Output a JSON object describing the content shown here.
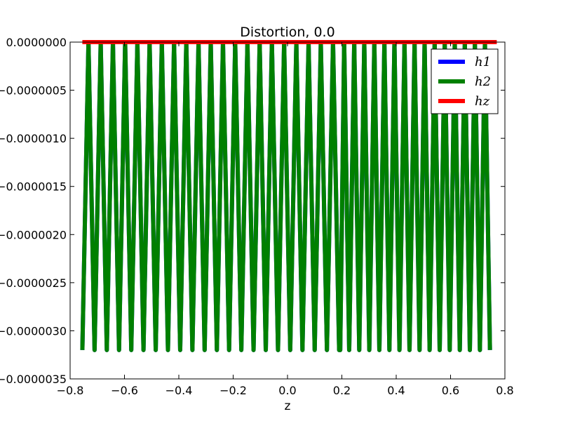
{
  "chart_data": {
    "type": "line",
    "title": "Distortion, 0.0",
    "xlabel": "z",
    "ylabel": "",
    "xlim": [
      -0.8,
      0.8
    ],
    "ylim": [
      -3.5e-06,
      0.0
    ],
    "x_ticks": [
      -0.8,
      -0.6,
      -0.4,
      -0.2,
      0.0,
      0.2,
      0.4,
      0.6,
      0.8
    ],
    "x_tick_labels": [
      "−0.8",
      "−0.6",
      "−0.4",
      "−0.2",
      "0.0",
      "0.2",
      "0.4",
      "0.6",
      "0.8"
    ],
    "y_ticks": [
      0.0,
      -5e-07,
      -1e-06,
      -1.5e-06,
      -2e-06,
      -2.5e-06,
      -3e-06,
      -3.5e-06
    ],
    "y_tick_labels": [
      "0.0000000",
      "−0.0000005",
      "−0.0000010",
      "−0.0000015",
      "−0.0000020",
      "−0.0000025",
      "−0.0000030",
      "−0.0000035"
    ],
    "grid": false,
    "legend_position": "top-right",
    "series": [
      {
        "name": "h1",
        "color": "#0000ff",
        "description": "oscillation between 0 and -3.2e-6 over z in [-0.755, 0.745], phase break near z=0.19 (hidden beneath h2)",
        "oscillation": {
          "x_start": -0.755,
          "x_end": 0.745,
          "y_max": 0.0,
          "y_min": -3.2e-06,
          "phase_break_x": 0.19,
          "half_periods_left": 42,
          "half_periods_right": 30
        }
      },
      {
        "name": "h2",
        "color": "#008000",
        "oscillation": {
          "x_start": -0.755,
          "x_end": 0.745,
          "y_max": 0.0,
          "y_min": -3.2e-06,
          "phase_break_x": 0.19,
          "half_periods_left": 42,
          "half_periods_right": 30
        }
      },
      {
        "name": "hz",
        "color": "#ff0000",
        "x": [
          -0.755,
          0.77
        ],
        "y": [
          0.0,
          0.0
        ]
      }
    ]
  }
}
